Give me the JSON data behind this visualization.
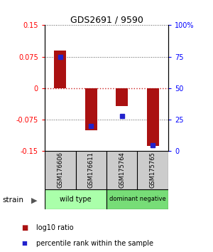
{
  "title": "GDS2691 / 9590",
  "samples": [
    "GSM176606",
    "GSM176611",
    "GSM175764",
    "GSM175765"
  ],
  "log10_ratio": [
    0.09,
    -0.101,
    -0.042,
    -0.138
  ],
  "percentile_rank": [
    75,
    20,
    28,
    5
  ],
  "ylim": [
    -0.15,
    0.15
  ],
  "yticks_left": [
    -0.15,
    -0.075,
    0,
    0.075,
    0.15
  ],
  "yticks_right": [
    0,
    25,
    50,
    75,
    100
  ],
  "bar_color": "#aa1111",
  "square_color": "#2222cc",
  "groups": [
    {
      "label": "wild type",
      "indices": [
        0,
        1
      ],
      "color": "#aaffaa"
    },
    {
      "label": "dominant negative",
      "indices": [
        2,
        3
      ],
      "color": "#77dd77"
    }
  ],
  "strain_label": "strain",
  "legend_ratio_label": "log10 ratio",
  "legend_percentile_label": "percentile rank within the sample",
  "dotted_line_color_zero": "#cc2222",
  "dotted_line_color_other": "#555555",
  "sample_box_color": "#cccccc",
  "background_color": "#ffffff"
}
